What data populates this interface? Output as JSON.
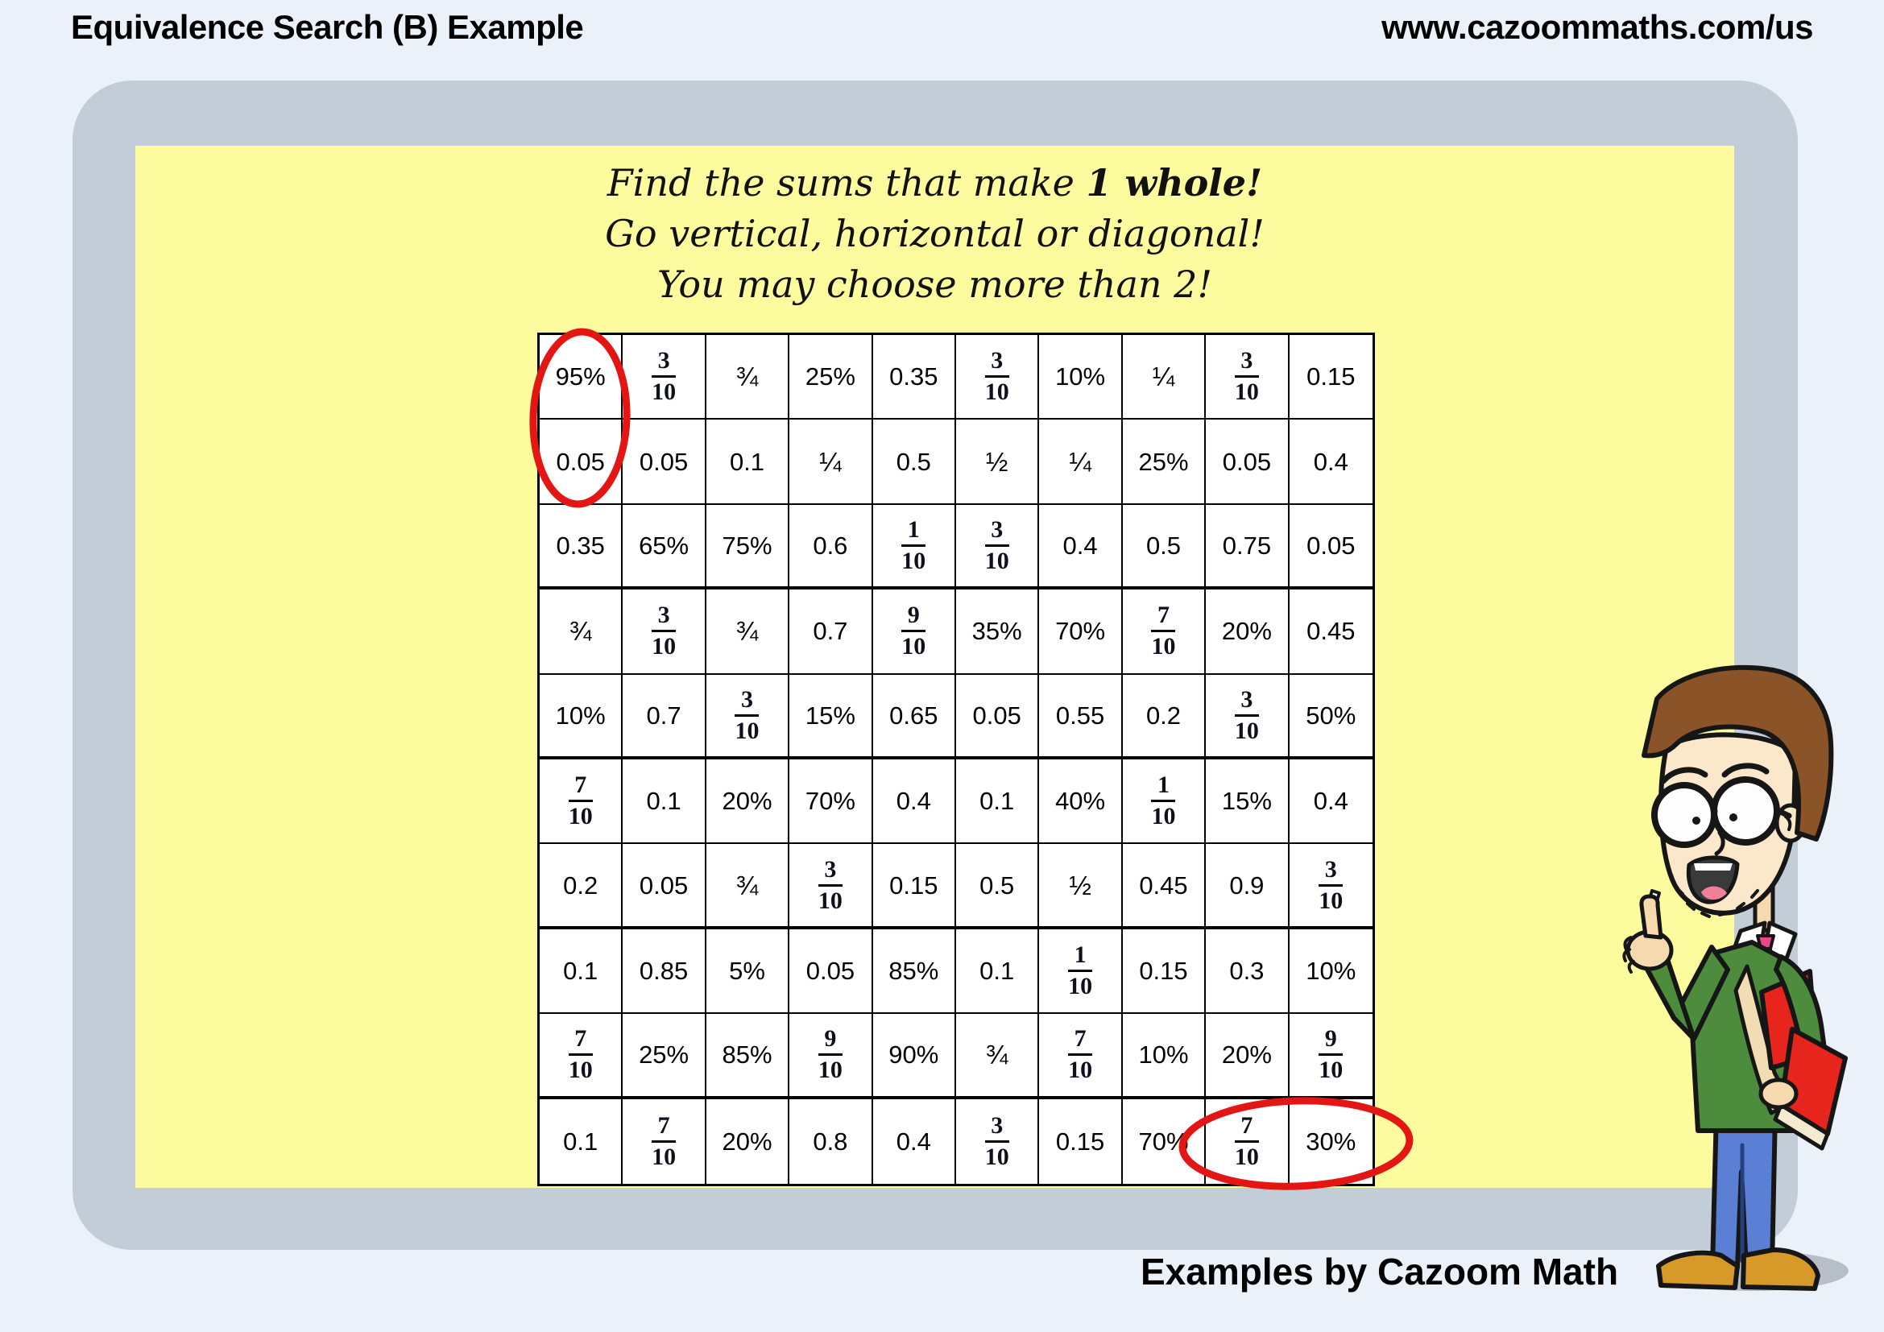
{
  "header": {
    "title": "Equivalence Search (B) Example",
    "url": "www.cazoommaths.com/us"
  },
  "instructions": {
    "line1_prefix": "Find the sums that make ",
    "line1_bold": "1 whole!",
    "line2": "Go vertical, horizontal or diagonal!",
    "line3": "You may choose more than 2!"
  },
  "grid": {
    "rows": [
      [
        "95%",
        "3/10",
        "¾",
        "25%",
        "0.35",
        "3/10",
        "10%",
        "¼",
        "3/10",
        "0.15"
      ],
      [
        "0.05",
        "0.05",
        "0.1",
        "¼",
        "0.5",
        "½",
        "¼",
        "25%",
        "0.05",
        "0.4"
      ],
      [
        "0.35",
        "65%",
        "75%",
        "0.6",
        "1/10",
        "3/10",
        "0.4",
        "0.5",
        "0.75",
        "0.05"
      ],
      [
        "¾",
        "3/10",
        "¾",
        "0.7",
        "9/10",
        "35%",
        "70%",
        "7/10",
        "20%",
        "0.45"
      ],
      [
        "10%",
        "0.7",
        "3/10",
        "15%",
        "0.65",
        "0.05",
        "0.55",
        "0.2",
        "3/10",
        "50%"
      ],
      [
        "7/10",
        "0.1",
        "20%",
        "70%",
        "0.4",
        "0.1",
        "40%",
        "1/10",
        "15%",
        "0.4"
      ],
      [
        "0.2",
        "0.05",
        "¾",
        "3/10",
        "0.15",
        "0.5",
        "½",
        "0.45",
        "0.9",
        "3/10"
      ],
      [
        "0.1",
        "0.85",
        "5%",
        "0.05",
        "85%",
        "0.1",
        "1/10",
        "0.15",
        "0.3",
        "10%"
      ],
      [
        "7/10",
        "25%",
        "85%",
        "9/10",
        "90%",
        "¾",
        "7/10",
        "10%",
        "20%",
        "9/10"
      ],
      [
        "0.1",
        "7/10",
        "20%",
        "0.8",
        "0.4",
        "3/10",
        "0.15",
        "70%",
        "7/10",
        "30%"
      ]
    ]
  },
  "annotations": {
    "circled_groups": [
      {
        "values": [
          "95%",
          "0.05"
        ],
        "orientation": "vertical",
        "position": "column 1, rows 1-2"
      },
      {
        "values": [
          "7/10",
          "30%"
        ],
        "orientation": "horizontal",
        "position": "row 10, columns 9-10"
      }
    ]
  },
  "footer": {
    "credit": "Examples by Cazoom Math"
  },
  "colors": {
    "page_bg": "#ebf1f8",
    "frame": "#c2cdd8",
    "panel": "#fcfc9e",
    "grid_bg": "#ffffff",
    "grid_line": "#000000",
    "circle_red": "#e41613"
  }
}
